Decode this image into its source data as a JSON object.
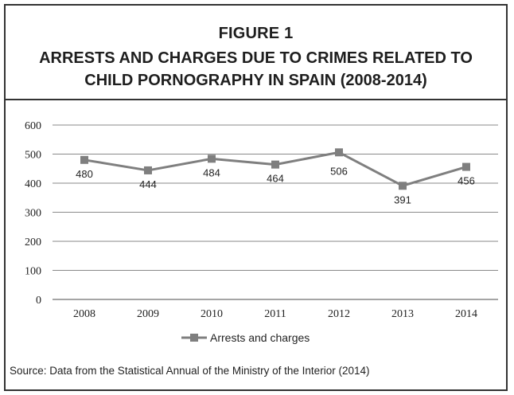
{
  "figure": {
    "label": "FIGURE 1",
    "title": "ARRESTS AND CHARGES DUE TO CRIMES RELATED TO CHILD PORNOGRAPHY IN SPAIN (2008-2014)"
  },
  "source": "Source: Data from the Statistical Annual of the Ministry of the Interior (2014)",
  "colors": {
    "series": "#7f7f7f",
    "grid": "#8a8a8a",
    "border": "#333333"
  },
  "chart_data": {
    "type": "line",
    "categories": [
      "2008",
      "2009",
      "2010",
      "2011",
      "2012",
      "2013",
      "2014"
    ],
    "series": [
      {
        "name": "Arrests and charges",
        "values": [
          480,
          444,
          484,
          464,
          506,
          391,
          456
        ],
        "marker": "square"
      }
    ],
    "data_labels": [
      "480",
      "444",
      "484",
      "464",
      "506",
      "391",
      "456"
    ],
    "yticks": [
      "0",
      "100",
      "200",
      "300",
      "400",
      "500",
      "600"
    ],
    "ylim": [
      0,
      600
    ],
    "grid": true,
    "legend_position": "bottom-center"
  }
}
